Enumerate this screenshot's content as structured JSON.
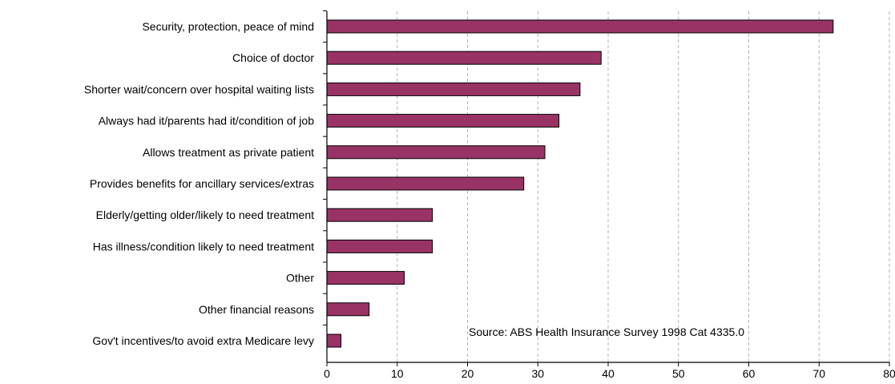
{
  "chart_data": {
    "type": "bar",
    "orientation": "horizontal",
    "title": "",
    "xlabel": "",
    "ylabel": "",
    "categories": [
      "Security, protection, peace of mind",
      "Choice of doctor",
      "Shorter wait/concern over hospital waiting lists",
      "Always had it/parents had it/condition of job",
      "Allows treatment as private patient",
      "Provides benefits for ancillary services/extras",
      "Elderly/getting older/likely to need treatment",
      "Has illness/condition likely to need treatment",
      "Other",
      "Other financial reasons",
      "Gov't incentives/to avoid extra Medicare levy"
    ],
    "values": [
      72,
      39,
      36,
      33,
      31,
      28,
      15,
      15,
      11,
      6,
      2
    ],
    "xlim": [
      0,
      80
    ],
    "xticks": [
      0,
      10,
      20,
      30,
      40,
      50,
      60,
      70,
      80
    ],
    "grid": {
      "x": true,
      "y": false,
      "style": "dashed"
    },
    "legend": "none",
    "bar_color": "#993366",
    "annotation": "Source:  ABS  Health Insurance Survey 1998 Cat 4335.0"
  }
}
